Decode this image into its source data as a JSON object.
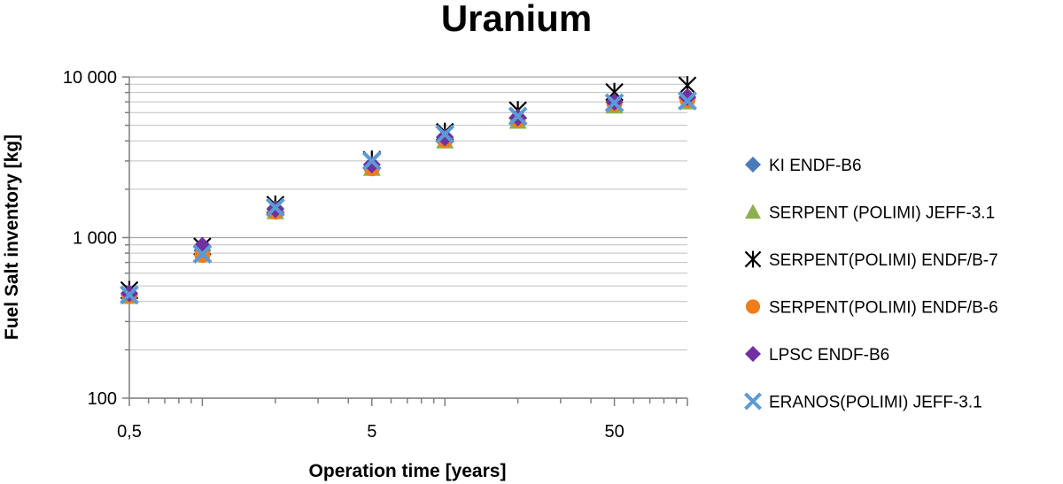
{
  "chart_data": {
    "type": "scatter",
    "title": "Uranium",
    "xlabel": "Operation time [years]",
    "ylabel": "Fuel Salt inventory [kg]",
    "x_scale": "log",
    "y_scale": "log",
    "xlim": [
      0.5,
      100
    ],
    "ylim": [
      100,
      10000
    ],
    "x_ticks": [
      {
        "value": 0.5,
        "label": "0,5"
      },
      {
        "value": 5,
        "label": "5"
      },
      {
        "value": 50,
        "label": "50"
      }
    ],
    "y_ticks": [
      {
        "value": 100,
        "label": "100"
      },
      {
        "value": 1000,
        "label": "1 000"
      },
      {
        "value": 10000,
        "label": "10 000"
      }
    ],
    "grid": "horizontal major and minor",
    "legend_position": "right",
    "x": [
      0.5,
      1.0,
      2.0,
      5.0,
      10.0,
      20.0,
      50.0,
      100.0
    ],
    "series": [
      {
        "name": "KI ENDF-B6",
        "marker": "diamond",
        "color": "#4a7ab8",
        "values": [
          440,
          830,
          1520,
          2850,
          4250,
          5550,
          6950,
          7350
        ]
      },
      {
        "name": "SERPENT (POLIMI) JEFF-3.1",
        "marker": "triangle",
        "color": "#8db04c",
        "values": [
          430,
          790,
          1450,
          2700,
          4000,
          5300,
          6600,
          7000
        ]
      },
      {
        "name": "SERPENT(POLIMI) ENDF/B-7",
        "marker": "asterisk",
        "color": "#000000",
        "values": [
          470,
          880,
          1600,
          3050,
          4550,
          6200,
          8050,
          8850
        ]
      },
      {
        "name": "SERPENT(POLIMI) ENDF/B-6",
        "marker": "circle",
        "color": "#f07c1c",
        "values": [
          435,
          780,
          1450,
          2700,
          4050,
          5450,
          6850,
          7200
        ]
      },
      {
        "name": "LPSC ENDF-B6",
        "marker": "diamond",
        "color": "#7030a0",
        "values": [
          450,
          890,
          1500,
          2850,
          4200,
          5600,
          7000,
          7500
        ]
      },
      {
        "name": "ERANOS(POLIMI) JEFF-3.1",
        "marker": "x",
        "color": "#5b9bd5",
        "values": [
          440,
          790,
          1540,
          3000,
          4400,
          5700,
          6900,
          7100
        ]
      }
    ]
  }
}
